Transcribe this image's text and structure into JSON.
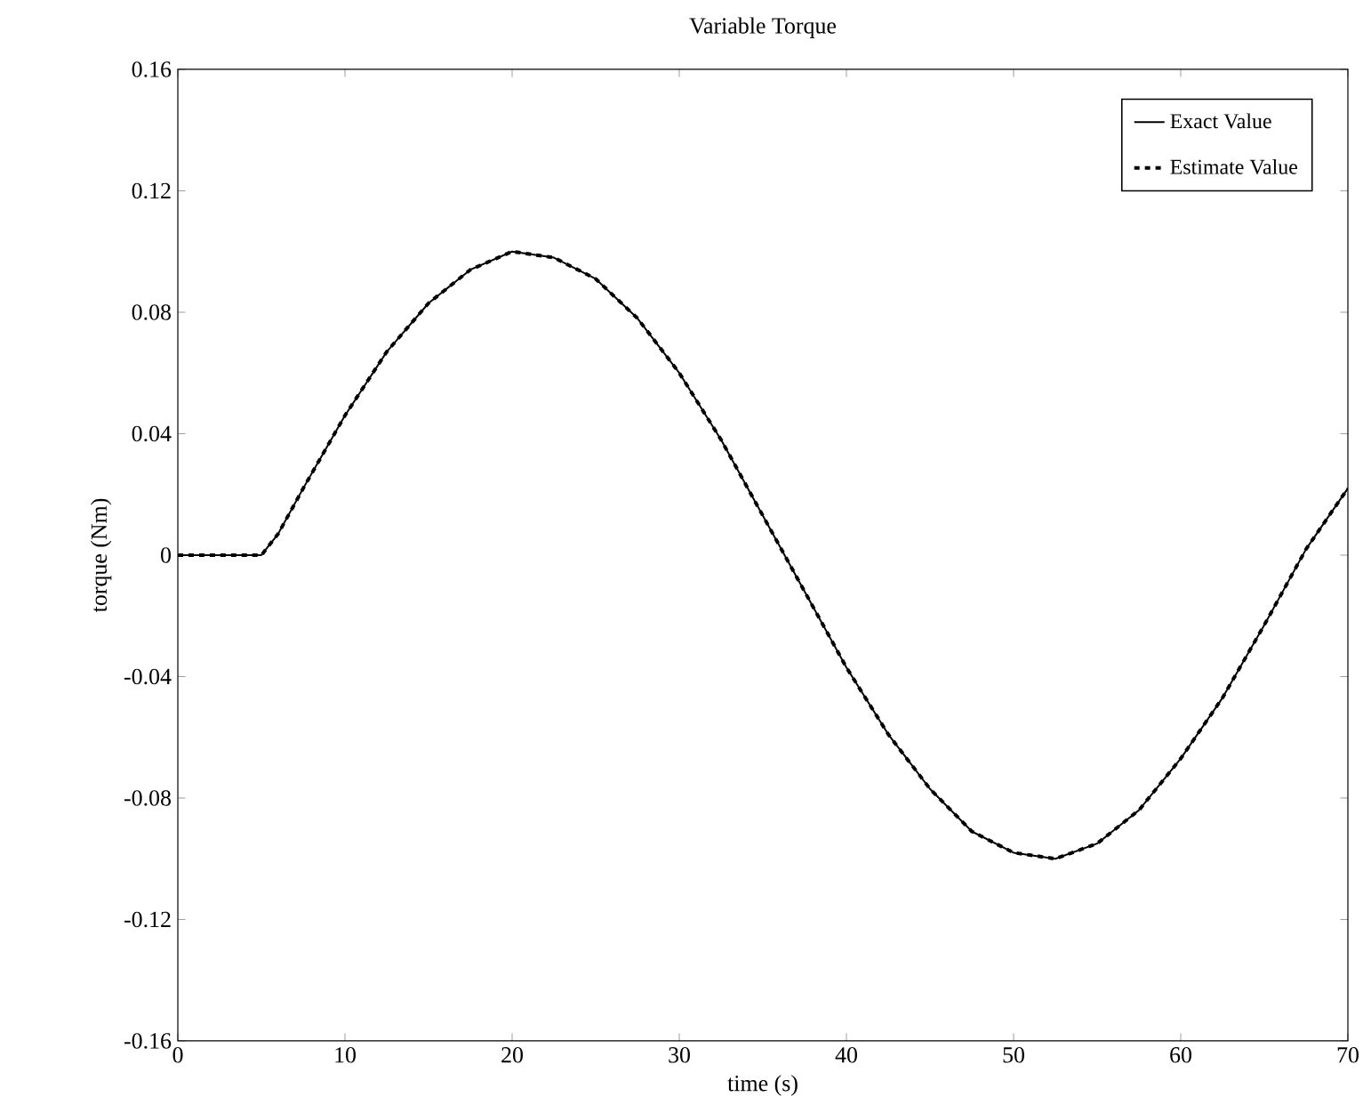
{
  "chart_data": {
    "type": "line",
    "title": "Variable Torque",
    "xlabel": "time (s)",
    "ylabel": "torque (Nm)",
    "x": [
      0,
      5,
      6,
      7.5,
      10,
      12.5,
      15,
      17.5,
      20,
      22.5,
      25,
      27.5,
      30,
      32.5,
      35,
      37.5,
      40,
      42.5,
      45,
      47.5,
      50,
      52.5,
      55,
      57.5,
      60,
      62.5,
      65,
      67.5,
      70
    ],
    "series": [
      {
        "name": "Exact Value",
        "color": "#000000",
        "line_style": "solid",
        "values": [
          0,
          0,
          0.007,
          0.022,
          0.046,
          0.067,
          0.083,
          0.094,
          0.1,
          0.098,
          0.091,
          0.078,
          0.06,
          0.038,
          0.013,
          -0.012,
          -0.037,
          -0.059,
          -0.077,
          -0.091,
          -0.098,
          -0.1,
          -0.095,
          -0.084,
          -0.067,
          -0.047,
          -0.023,
          0.002,
          0.022
        ]
      },
      {
        "name": "Estimate Value",
        "color": "#000000",
        "line_style": "dashed",
        "values": [
          0,
          0,
          0.007,
          0.022,
          0.046,
          0.067,
          0.083,
          0.094,
          0.1,
          0.098,
          0.091,
          0.078,
          0.06,
          0.038,
          0.013,
          -0.012,
          -0.037,
          -0.059,
          -0.077,
          -0.091,
          -0.098,
          -0.1,
          -0.095,
          -0.084,
          -0.067,
          -0.047,
          -0.023,
          0.002,
          0.022
        ]
      }
    ],
    "xlim": [
      0,
      70
    ],
    "xticks": [
      0,
      10,
      20,
      30,
      40,
      50,
      60,
      70
    ],
    "ylim": [
      -0.16,
      0.16
    ],
    "yticks": [
      -0.16,
      -0.12,
      -0.08,
      -0.04,
      0,
      0.04,
      0.08,
      0.12,
      0.16
    ],
    "legend": "top right",
    "grid": false
  }
}
